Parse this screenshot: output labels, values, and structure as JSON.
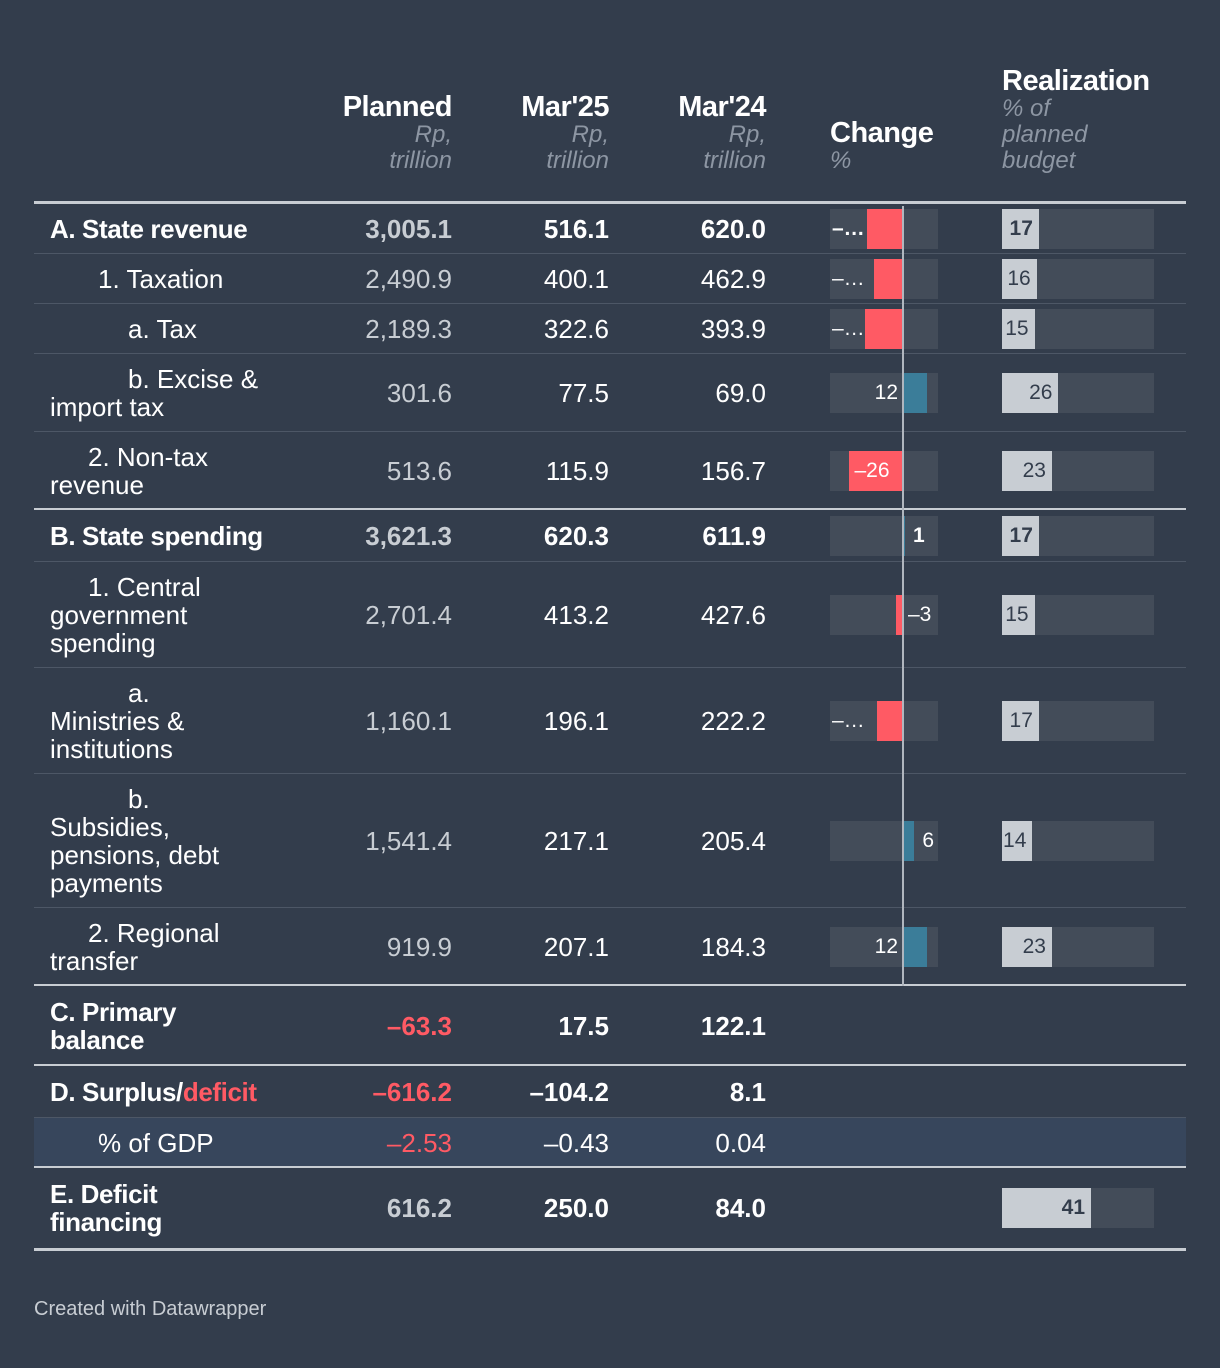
{
  "columns": {
    "planned": {
      "title": "Planned",
      "sub1": "Rp,",
      "sub2": "trillion"
    },
    "mar25": {
      "title": "Mar'25",
      "sub1": "Rp,",
      "sub2": "trillion"
    },
    "mar24": {
      "title": "Mar'24",
      "sub1": "Rp,",
      "sub2": "trillion"
    },
    "change": {
      "title": "Change",
      "sub1": "%"
    },
    "realization": {
      "title": "Realization",
      "sub1": "% of",
      "sub2": "planned",
      "sub3": "budget"
    }
  },
  "chart_data": {
    "type": "table",
    "change_axis": [
      -35,
      15
    ],
    "realization_axis": [
      0,
      70
    ],
    "colors": {
      "negative": "#ff5a64",
      "positive": "#3b7d99",
      "realization": "#c8cdd3",
      "background": "#333d4c"
    },
    "rows": [
      {
        "label": "A. State revenue",
        "bold": true,
        "planned": "3,005.1",
        "mar25": "516.1",
        "mar24": "620.0",
        "change": -16.8,
        "change_label": "–…",
        "realization": 17,
        "realization_label": "17"
      },
      {
        "label": "1. Taxation",
        "bold": false,
        "indent": 48,
        "planned": "2,490.9",
        "mar25": "400.1",
        "mar24": "462.9",
        "change": -13.6,
        "change_label": "–…",
        "realization": 16,
        "realization_label": "16"
      },
      {
        "label": "a. Tax",
        "bold": false,
        "indent": 78,
        "planned": "2,189.3",
        "mar25": "322.6",
        "mar24": "393.9",
        "change": -18.1,
        "change_label": "–…",
        "realization": 15,
        "realization_label": "15"
      },
      {
        "label_lines": [
          "b. Excise &",
          "import tax"
        ],
        "indent": 78,
        "bold": false,
        "planned": "301.6",
        "mar25": "77.5",
        "mar24": "69.0",
        "change": 12,
        "change_label": "12",
        "realization": 26,
        "realization_label": "26"
      },
      {
        "label_lines": [
          "2. Non-tax",
          "revenue"
        ],
        "indent": 38,
        "bold": false,
        "planned": "513.6",
        "mar25": "115.9",
        "mar24": "156.7",
        "change": -26,
        "change_label": "–26",
        "realization": 23,
        "realization_label": "23"
      },
      {
        "label": "B. State spending",
        "bold": true,
        "planned": "3,621.3",
        "mar25": "620.3",
        "mar24": "611.9",
        "change": 1,
        "change_label": "1",
        "realization": 17,
        "realization_label": "17"
      },
      {
        "label_lines": [
          "1. Central",
          "government",
          "spending"
        ],
        "indent": 38,
        "bold": false,
        "planned": "2,701.4",
        "mar25": "413.2",
        "mar24": "427.6",
        "change": -3,
        "change_label": "–3",
        "realization": 15,
        "realization_label": "15"
      },
      {
        "label_lines": [
          "a.",
          "Ministries &",
          "institutions"
        ],
        "indent": 78,
        "bold": false,
        "planned": "1,160.1",
        "mar25": "196.1",
        "mar24": "222.2",
        "change": -12,
        "change_label": "–…",
        "realization": 17,
        "realization_label": "17"
      },
      {
        "label_lines": [
          "b.",
          "Subsidies,",
          "pensions, debt",
          "payments"
        ],
        "indent": 78,
        "bold": false,
        "planned": "1,541.4",
        "mar25": "217.1",
        "mar24": "205.4",
        "change": 6,
        "change_label": "6",
        "realization": 14,
        "realization_label": "14"
      },
      {
        "label_lines": [
          "2. Regional",
          "transfer"
        ],
        "indent": 38,
        "bold": false,
        "planned": "919.9",
        "mar25": "207.1",
        "mar24": "184.3",
        "change": 12,
        "change_label": "12",
        "realization": 23,
        "realization_label": "23"
      },
      {
        "label_lines": [
          "C. Primary",
          "balance"
        ],
        "bold": true,
        "planned": "–63.3",
        "planned_red": true,
        "mar25": "17.5",
        "mar24": "122.1"
      },
      {
        "label_parts": [
          "D. Surplus/",
          "deficit"
        ],
        "bold": true,
        "planned": "–616.2",
        "planned_red": true,
        "mar25": "–104.2",
        "mar24": "8.1"
      },
      {
        "label": "% of GDP",
        "indent": 48,
        "bold": false,
        "shaded": true,
        "planned": "–2.53",
        "planned_red": true,
        "mar25": "–0.43",
        "mar24": "0.04"
      },
      {
        "label_lines": [
          "E. Deficit",
          "financing"
        ],
        "bold": true,
        "planned": "616.2",
        "mar25": "250.0",
        "mar24": "84.0",
        "realization": 41,
        "realization_label": "41"
      }
    ]
  },
  "footer": "Created with Datawrapper"
}
